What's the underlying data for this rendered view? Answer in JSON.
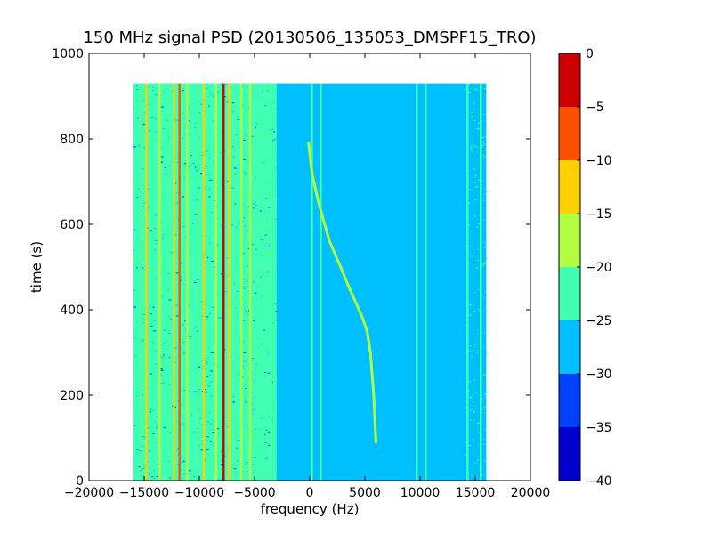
{
  "chart_data": {
    "type": "heatmap",
    "title": "150 MHz signal PSD (20130506_135053_DMSPF15_TRO)",
    "xlabel": "frequency (Hz)",
    "ylabel": "time (s)",
    "xlim": [
      -20000,
      20000
    ],
    "ylim": [
      0,
      1000
    ],
    "x_ticks": [
      -20000,
      -15000,
      -10000,
      -5000,
      0,
      5000,
      10000,
      15000,
      20000
    ],
    "x_tick_labels": [
      "−20000",
      "−15000",
      "−10000",
      "−5000",
      "0",
      "5000",
      "10000",
      "15000",
      "20000"
    ],
    "y_ticks": [
      0,
      200,
      400,
      600,
      800,
      1000
    ],
    "y_tick_labels": [
      "0",
      "200",
      "400",
      "600",
      "800",
      "1000"
    ],
    "data_extent": {
      "freq_min_hz": -16000,
      "freq_max_hz": 16000,
      "time_min_s": 0,
      "time_max_s": 930
    },
    "background_level_db": -27.5,
    "colorbar": {
      "levels": [
        -40,
        -35,
        -30,
        -25,
        -20,
        -15,
        -10,
        -5,
        0
      ],
      "tick_labels": [
        "−40",
        "−35",
        "−30",
        "−25",
        "−20",
        "−15",
        "−10",
        "−5",
        "0"
      ],
      "colors": [
        "#0000cd",
        "#0040ff",
        "#00bfff",
        "#40ffb0",
        "#b0ff40",
        "#ffd000",
        "#ff5000",
        "#cd0000"
      ]
    },
    "noise_region": {
      "freq_min_hz": -16000,
      "freq_max_hz": -3000,
      "level_db": -22.5
    },
    "vertical_lines": [
      {
        "freq_hz": -14800,
        "level_db": -12.5
      },
      {
        "freq_hz": -13600,
        "level_db": -17.5
      },
      {
        "freq_hz": -12300,
        "level_db": -12.5
      },
      {
        "freq_hz": -11800,
        "level_db": -7.5
      },
      {
        "freq_hz": -11100,
        "level_db": -17.5
      },
      {
        "freq_hz": -9600,
        "level_db": -12.5
      },
      {
        "freq_hz": -8500,
        "level_db": -17.5
      },
      {
        "freq_hz": -7800,
        "level_db": -2.5
      },
      {
        "freq_hz": -7300,
        "level_db": -12.5
      },
      {
        "freq_hz": -6200,
        "level_db": -17.5
      },
      {
        "freq_hz": -5400,
        "level_db": -17.5
      },
      {
        "freq_hz": -4600,
        "level_db": -22.5
      },
      {
        "freq_hz": -3500,
        "level_db": -22.5
      },
      {
        "freq_hz": 200,
        "level_db": -22.5
      },
      {
        "freq_hz": 1000,
        "level_db": -22.5
      },
      {
        "freq_hz": 9700,
        "level_db": -22.5
      },
      {
        "freq_hz": 10500,
        "level_db": -22.5
      },
      {
        "freq_hz": 14300,
        "level_db": -22.5
      },
      {
        "freq_hz": 15500,
        "level_db": -22.5
      }
    ],
    "doppler_trace": {
      "level_db": -17.5,
      "freq_hz": [
        6000,
        5800,
        5500,
        5200,
        4800,
        4300,
        3600,
        2800,
        1800,
        800,
        200,
        -100
      ],
      "time_s": [
        90,
        200,
        300,
        350,
        380,
        410,
        450,
        500,
        560,
        650,
        720,
        790
      ]
    },
    "colorbar_label_position": "right"
  }
}
